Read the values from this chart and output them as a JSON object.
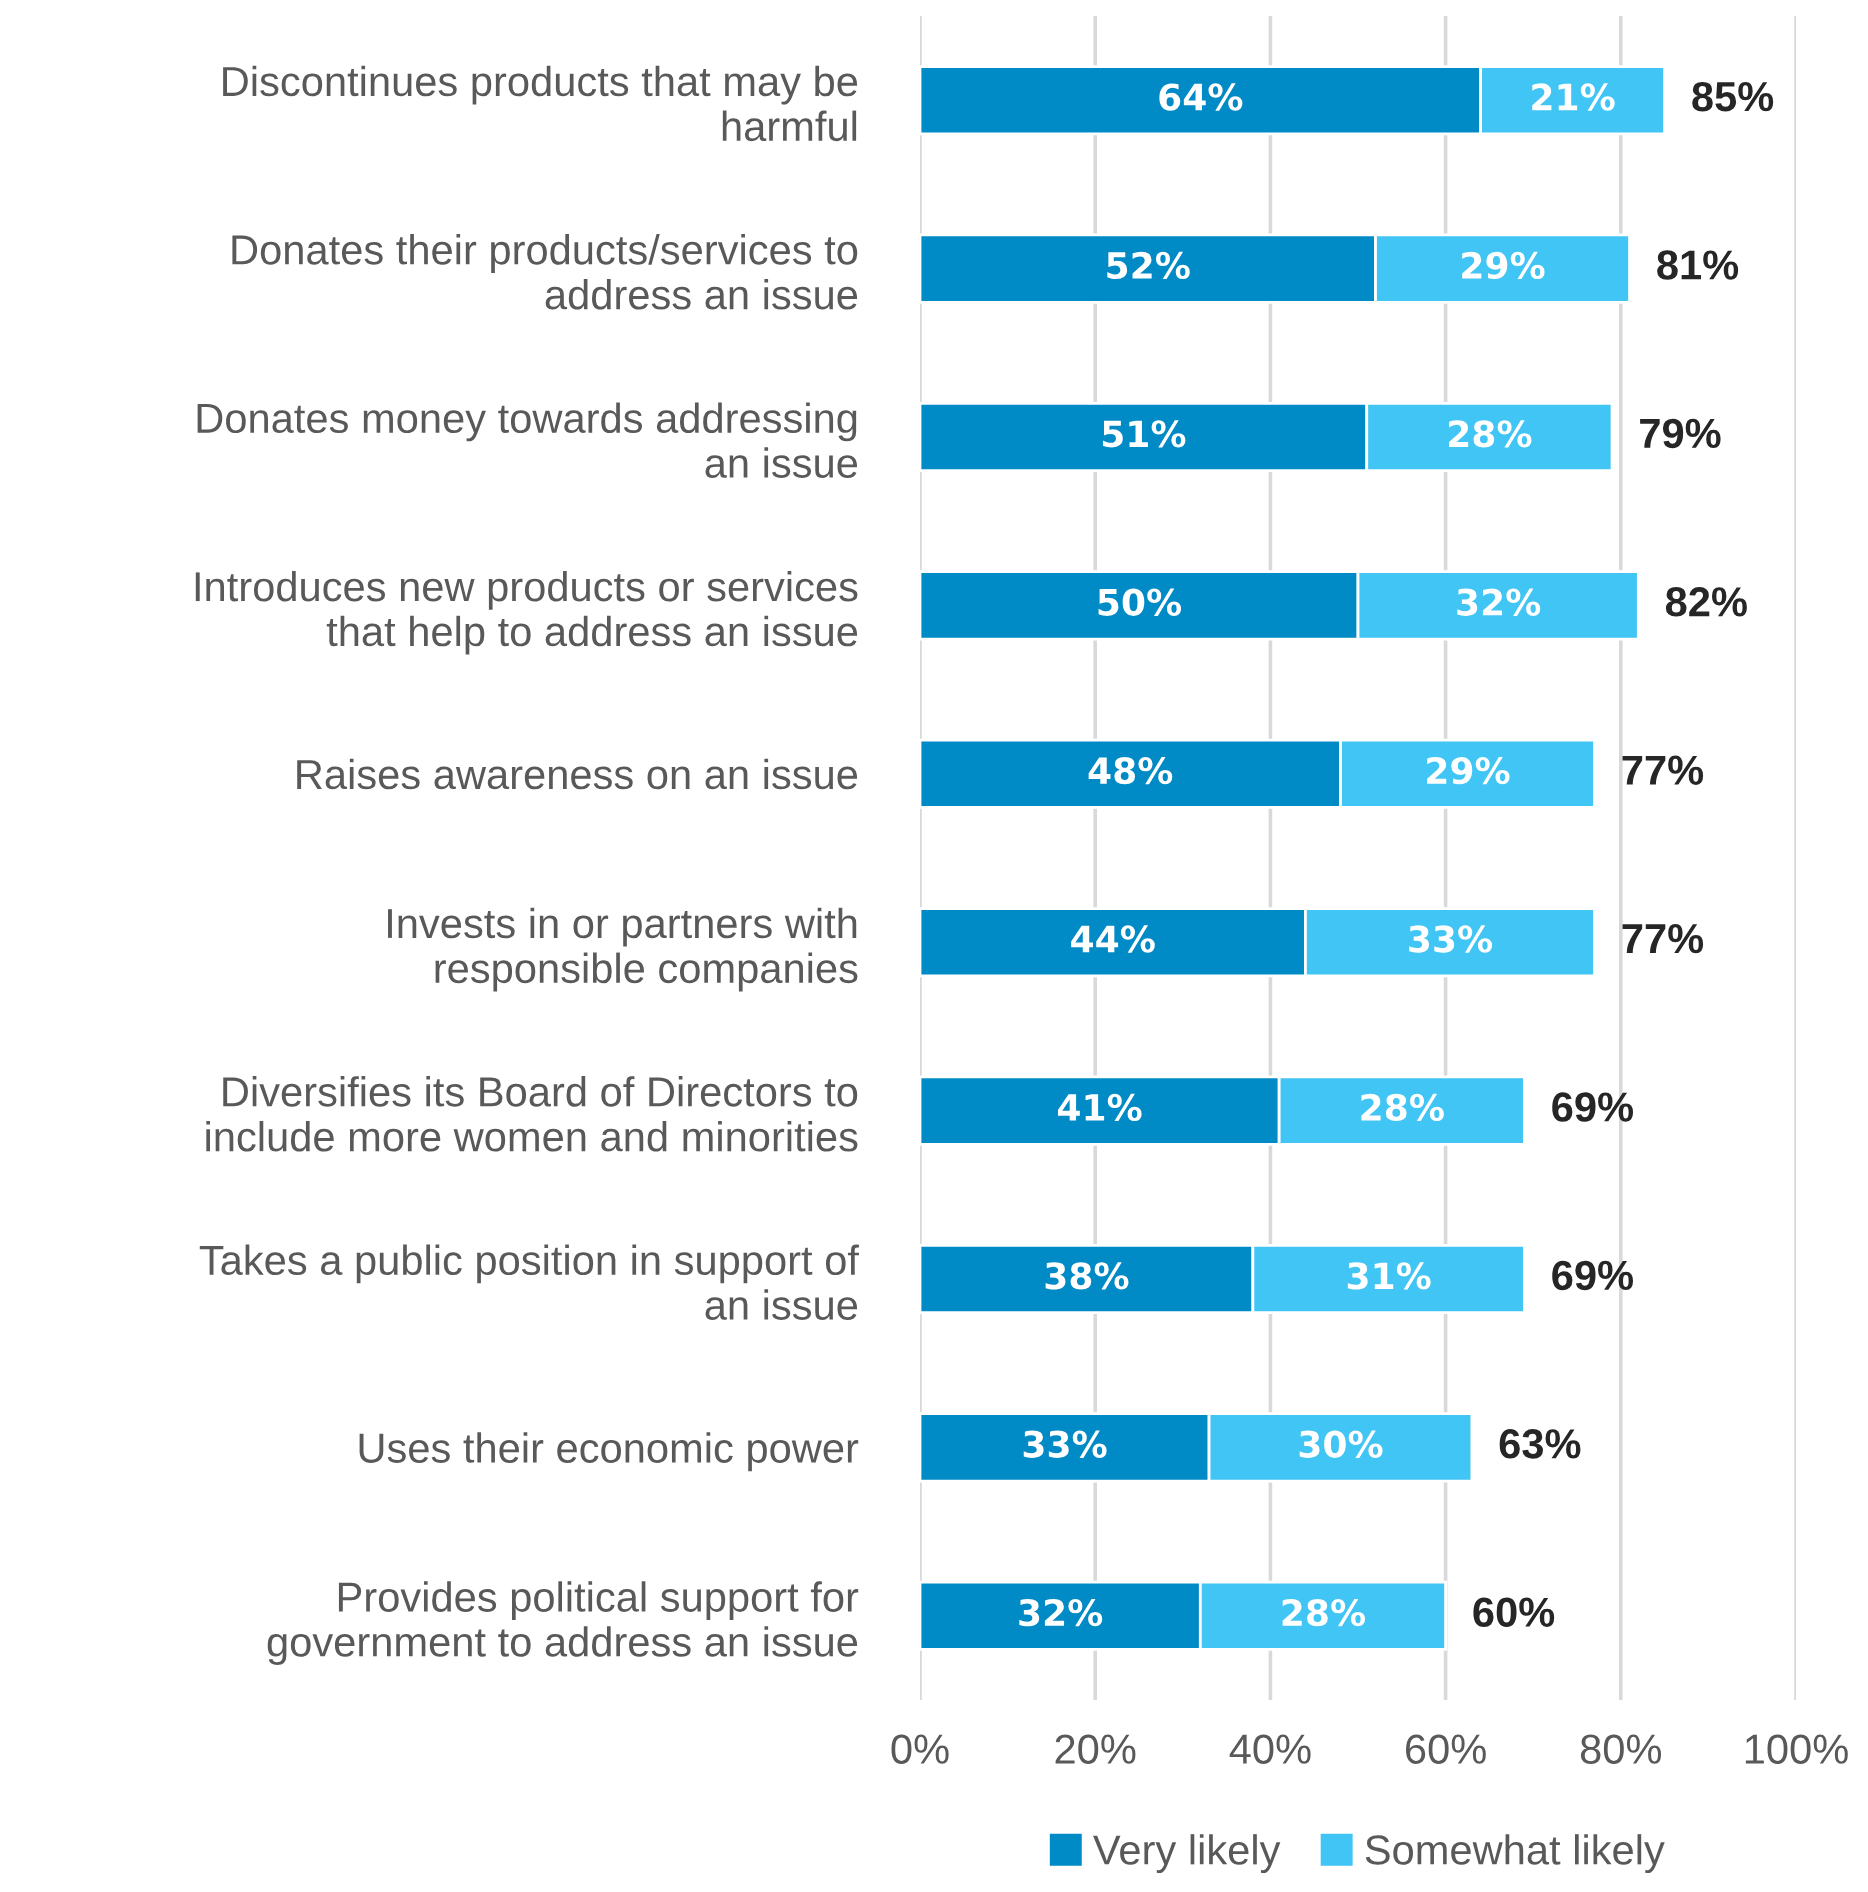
{
  "chart_data": {
    "type": "bar",
    "orientation": "horizontal",
    "stacked": true,
    "categories": [
      "Discontinues products that may be\nharmful",
      "Donates their products/services to\naddress an issue",
      "Donates money towards addressing\nan issue",
      "Introduces new products or services\nthat help to address an issue",
      "Raises awareness on an issue",
      "Invests in or partners with\nresponsible companies",
      "Diversifies its Board of Directors to\ninclude more women and minorities",
      "Takes a public position in support of\nan issue",
      "Uses their economic power",
      "Provides political support for\ngovernment to address an issue"
    ],
    "series": [
      {
        "name": "Very likely",
        "color": "#008ac6",
        "values": [
          64,
          52,
          51,
          50,
          48,
          44,
          41,
          38,
          33,
          32
        ],
        "value_labels": [
          "64%",
          "52%",
          "51%",
          "50%",
          "48%",
          "44%",
          "41%",
          "38%",
          "33%",
          "32%"
        ]
      },
      {
        "name": "Somewhat likely",
        "color": "#41c5f5",
        "values": [
          21,
          29,
          28,
          32,
          29,
          33,
          28,
          31,
          30,
          28
        ],
        "value_labels": [
          "21%",
          "29%",
          "28%",
          "32%",
          "29%",
          "33%",
          "28%",
          "31%",
          "30%",
          "28%"
        ]
      }
    ],
    "totals": [
      "85%",
      "81%",
      "79%",
      "82%",
      "77%",
      "77%",
      "69%",
      "69%",
      "63%",
      "60%"
    ],
    "xlim": [
      0,
      100
    ],
    "xticks": [
      {
        "value": 0,
        "label": "0%"
      },
      {
        "value": 20,
        "label": "20%"
      },
      {
        "value": 40,
        "label": "40%"
      },
      {
        "value": 60,
        "label": "60%"
      },
      {
        "value": 80,
        "label": "80%"
      },
      {
        "value": 100,
        "label": "100%"
      }
    ],
    "grid": "x",
    "legend": "bottom"
  }
}
